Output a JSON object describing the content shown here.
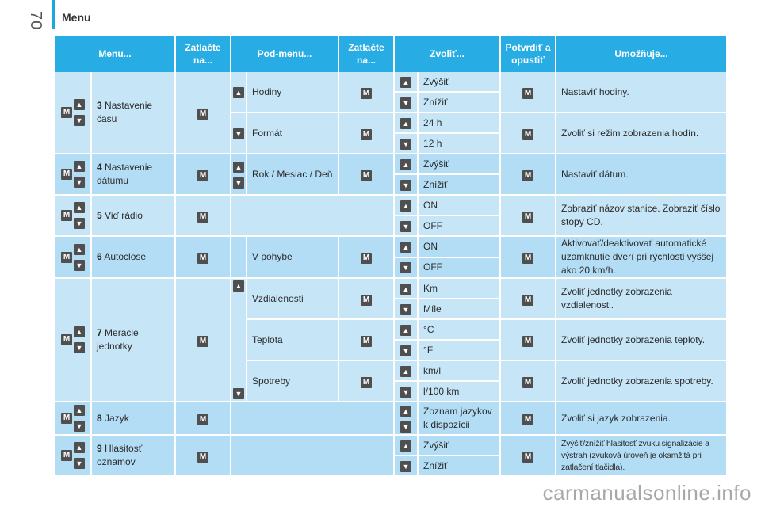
{
  "page": {
    "number": "70",
    "section": "Menu",
    "watermark": "carmanualsonline.info"
  },
  "headers": [
    "Menu...",
    "Zatlačte na...",
    "Pod-menu...",
    "Zatlačte na...",
    "Zvoliť...",
    "Potvrdiť a opustiť",
    "Umožňuje..."
  ],
  "icons": {
    "up": "▲",
    "down": "▼",
    "m": "M"
  },
  "menus": [
    {
      "num": "3",
      "label": "Nastavenie času"
    },
    {
      "num": "4",
      "label": "Nastavenie dátumu"
    },
    {
      "num": "5",
      "label": "Viď rádio"
    },
    {
      "num": "6",
      "label": "Autoclose"
    },
    {
      "num": "7",
      "label": "Meracie jednotky"
    },
    {
      "num": "8",
      "label": "Jazyk"
    },
    {
      "num": "9",
      "label": "Hlasitosť oznamov"
    }
  ],
  "submenus": {
    "hodiny": "Hodiny",
    "format": "Formát",
    "rok": "Rok / Mesiac / Deň",
    "pohyb": "V pohybe",
    "vzdial": "Vzdialenosti",
    "teplota": "Teplota",
    "spotreby": "Spotreby"
  },
  "options": {
    "zvysit": "Zvýšiť",
    "znizit": "Znížiť",
    "h24": "24 h",
    "h12": "12 h",
    "on": "ON",
    "off": "OFF",
    "km": "Km",
    "mile": "Míle",
    "c": "°C",
    "f": "°F",
    "kml": "km/l",
    "l100": "l/100 km",
    "jazyky": "Zoznam jazykov k dispozícii"
  },
  "allows": {
    "hodiny": "Nastaviť hodiny.",
    "format": "Zvoliť si režim zobrazenia hodín.",
    "datum": "Nastaviť dátum.",
    "radio": "Zobraziť názov stanice. Zobraziť číslo stopy CD.",
    "autoclose": "Aktivovať/deaktivovať automatické uzamknutie dverí pri rýchlosti vyššej ako 20 km/h.",
    "vzdial": "Zvoliť jednotky zobrazenia vzdialenosti.",
    "teplota": "Zvoliť jednotky zobrazenia teploty.",
    "spotreby": "Zvoliť jednotky zobrazenia spotreby.",
    "jazyk": "Zvoliť si jazyk zobrazenia.",
    "hlasitost": "Zvýšiť/znížiť hlasitosť zvuku signalizácie a výstrah (zvuková úroveň je okamžitá pri zatlačení tlačidla)."
  }
}
